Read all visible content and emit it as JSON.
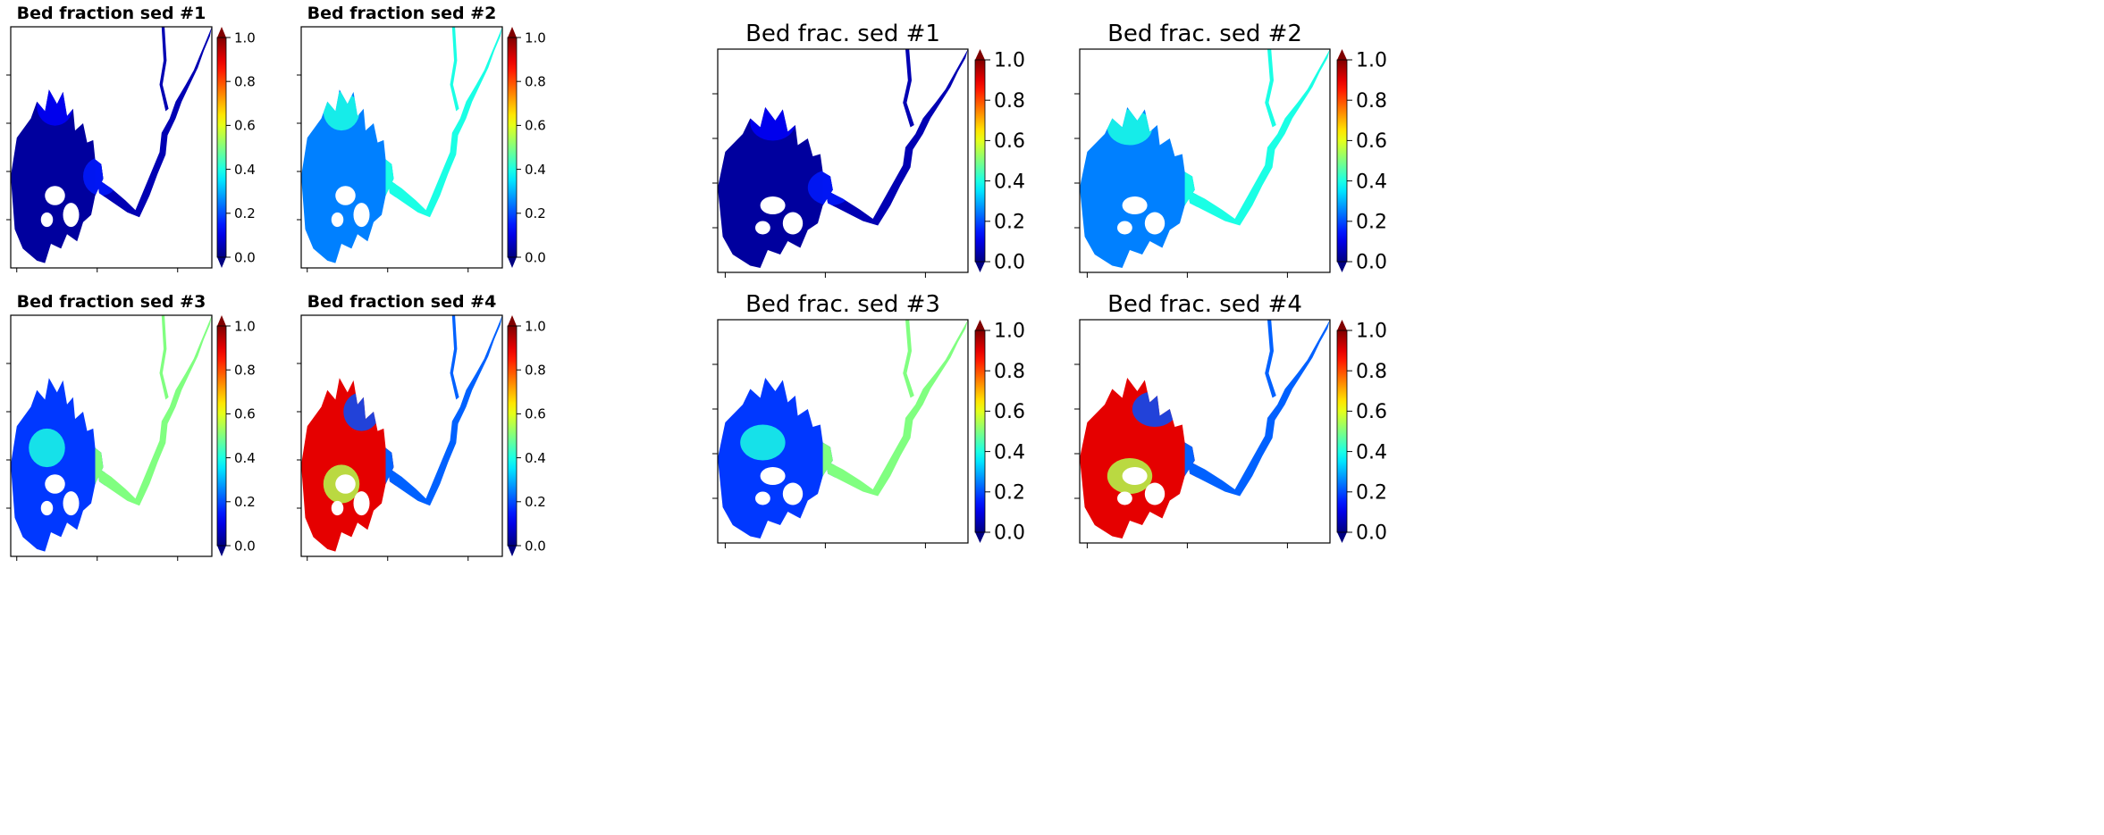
{
  "figures": [
    {
      "id": "left",
      "panels": [
        {
          "title": "Bed fraction sed #1",
          "map": "sed1"
        },
        {
          "title": "Bed fraction sed #2",
          "map": "sed2"
        },
        {
          "title": "Bed fraction sed #3",
          "map": "sed3"
        },
        {
          "title": "Bed fraction sed #4",
          "map": "sed4"
        }
      ]
    },
    {
      "id": "right",
      "panels": [
        {
          "title": "Bed frac. sed #1",
          "map": "sed1"
        },
        {
          "title": "Bed frac. sed #2",
          "map": "sed2"
        },
        {
          "title": "Bed frac. sed #3",
          "map": "sed3"
        },
        {
          "title": "Bed frac. sed #4",
          "map": "sed4"
        }
      ]
    }
  ],
  "chart_data": {
    "type": "heatmap",
    "colormap": "jet",
    "colorbar": {
      "range": [
        0,
        1
      ],
      "ticks": [
        "0.0",
        "0.2",
        "0.4",
        "0.6",
        "0.8",
        "1.0"
      ],
      "extend": "both"
    },
    "maps": {
      "sed1": {
        "bay": 0.03,
        "river": 0.05,
        "patches": [
          [
            0.22,
            0.33,
            0.12
          ],
          [
            0.45,
            0.62,
            0.15
          ]
        ]
      },
      "sed2": {
        "bay": 0.25,
        "river": 0.4,
        "patches": [
          [
            0.2,
            0.35,
            0.4
          ],
          [
            0.55,
            0.25,
            0.3
          ]
        ]
      },
      "sed3": {
        "bay": 0.18,
        "river": 0.5,
        "patches": [
          [
            0.18,
            0.55,
            0.4
          ],
          [
            0.4,
            0.3,
            0.12
          ]
        ]
      },
      "sed4": {
        "bay": 0.9,
        "river": 0.22,
        "patches": [
          [
            0.3,
            0.4,
            0.2
          ],
          [
            0.2,
            0.7,
            0.55
          ]
        ]
      }
    }
  }
}
